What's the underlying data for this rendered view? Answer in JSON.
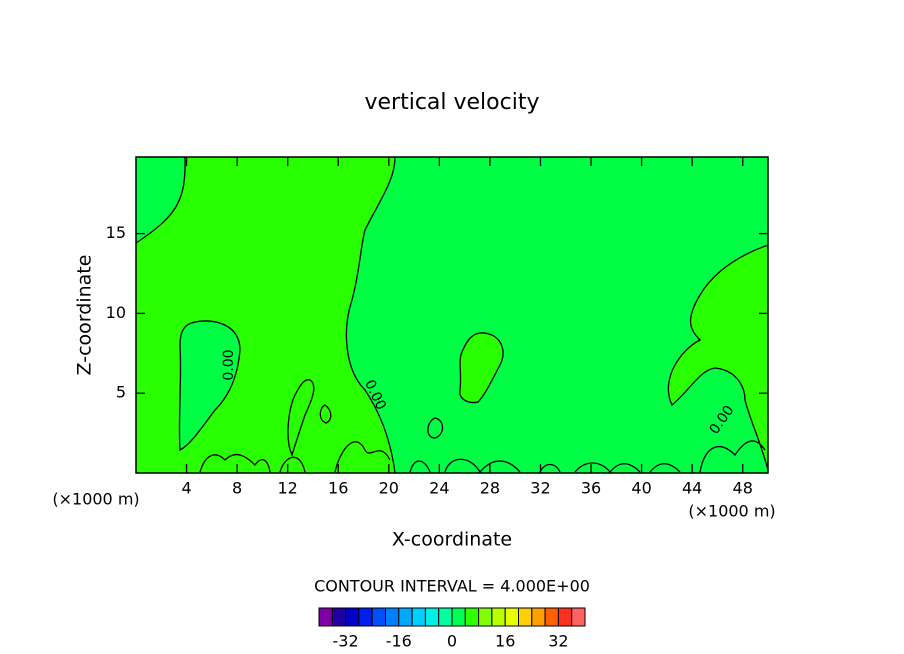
{
  "chart_data": {
    "type": "contour",
    "title": "vertical velocity",
    "x_label": "X-coordinate",
    "y_label": "Z-coordinate",
    "x_unit_label": "(×1000 m)",
    "xlim": [
      0,
      50
    ],
    "xticks": [
      4,
      8,
      12,
      16,
      20,
      24,
      28,
      32,
      36,
      40,
      44,
      48
    ],
    "ylim": [
      0,
      19.8
    ],
    "yticks": [
      5,
      10,
      15
    ],
    "contour_labels": [
      "0.00",
      "0.00",
      "0.00"
    ],
    "colorbar": {
      "title": "CONTOUR INTERVAL = 4.000E+00",
      "bins": [
        -40,
        -36,
        -32,
        -28,
        -24,
        -20,
        -16,
        -12,
        -8,
        -4,
        0,
        4,
        8,
        12,
        16,
        20,
        24,
        28,
        32,
        36,
        40
      ],
      "colors": [
        "#8000a8",
        "#2000a0",
        "#0000c8",
        "#0020f0",
        "#0050ff",
        "#0080ff",
        "#00a8ff",
        "#00d0ff",
        "#00f0e8",
        "#00ffa0",
        "#00ff50",
        "#30ff00",
        "#80ff00",
        "#b8ff00",
        "#e8ff00",
        "#ffd000",
        "#ffa000",
        "#ff6000",
        "#ff3020",
        "#ff6060"
      ],
      "ticks": [
        -32,
        -16,
        0,
        16,
        32
      ]
    }
  }
}
